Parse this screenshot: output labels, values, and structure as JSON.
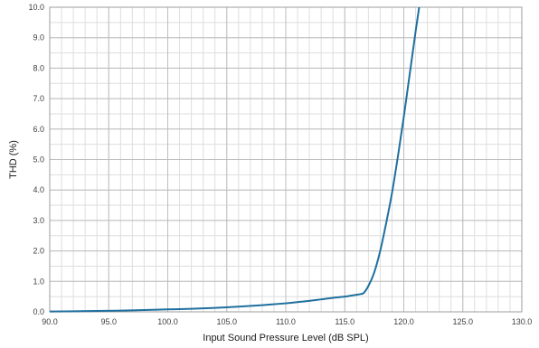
{
  "chart_data": {
    "type": "line",
    "title": "",
    "xlabel": "Input Sound Pressure Level (dB SPL)",
    "ylabel": "THD (%)",
    "xlim": [
      90,
      130
    ],
    "ylim": [
      0,
      10
    ],
    "x_ticks": [
      "90.0",
      "95.0",
      "100.0",
      "105.0",
      "110.0",
      "115.0",
      "120.0",
      "125.0",
      "130.0"
    ],
    "y_ticks": [
      "0.0",
      "1.0",
      "2.0",
      "3.0",
      "4.0",
      "5.0",
      "6.0",
      "7.0",
      "8.0",
      "9.0",
      "10.0"
    ],
    "grid": true,
    "minor_x_grid_step": 1,
    "minor_y_grid_step": 0.5,
    "legend": "none",
    "line_color": "#1f6f9f",
    "series": [
      {
        "x": [
          90,
          92,
          94,
          96,
          98,
          100,
          102,
          104,
          106,
          108,
          110,
          111,
          112,
          113,
          114,
          115,
          115.5,
          116,
          116.3,
          116.6,
          117,
          117.5,
          118,
          118.5,
          119,
          119.5,
          120,
          120.5,
          121,
          121.3
        ],
        "values": [
          0.01,
          0.02,
          0.03,
          0.04,
          0.06,
          0.08,
          0.1,
          0.13,
          0.17,
          0.22,
          0.28,
          0.32,
          0.36,
          0.41,
          0.46,
          0.5,
          0.53,
          0.56,
          0.58,
          0.62,
          0.85,
          1.3,
          2.0,
          2.9,
          3.9,
          5.1,
          6.4,
          7.8,
          9.2,
          10.0
        ]
      }
    ]
  }
}
